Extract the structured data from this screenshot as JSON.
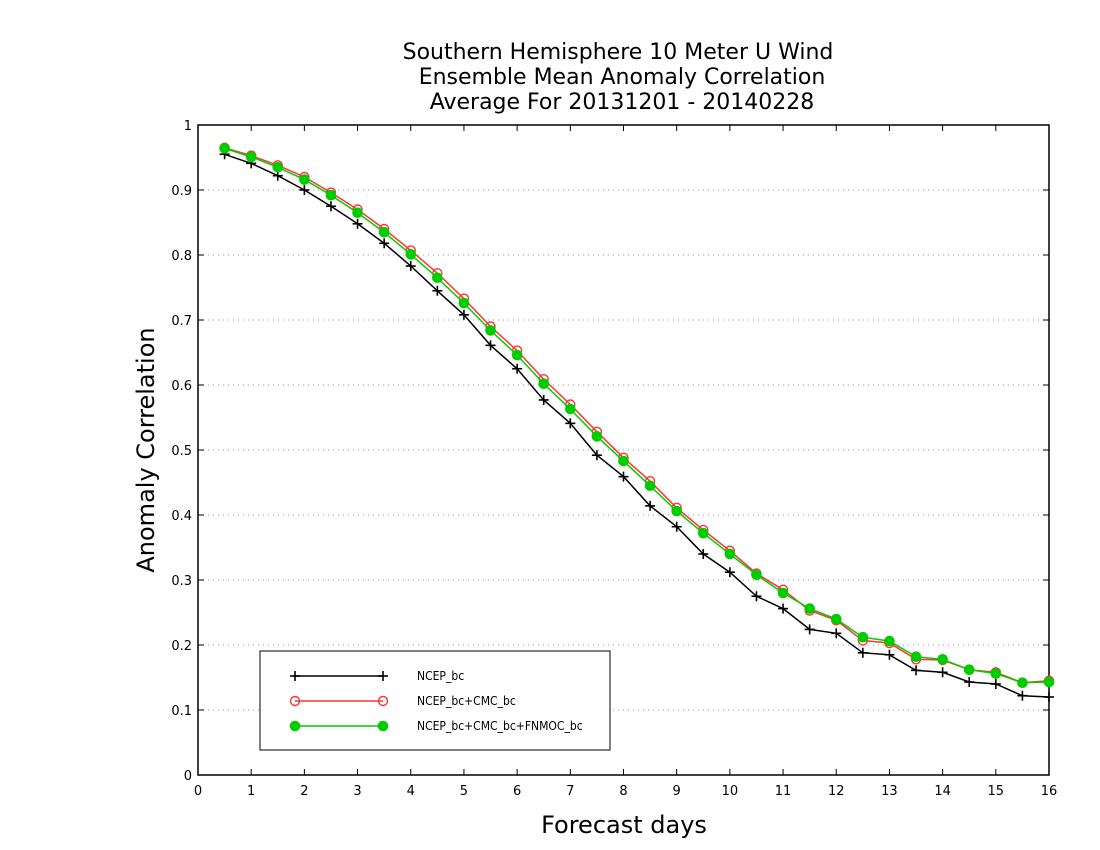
{
  "chart_data": {
    "type": "line",
    "title_lines": [
      "Southern Hemisphere 10 Meter U Wind",
      "Ensemble Mean Anomaly Correlation",
      "Average For 20131201 - 20140228"
    ],
    "xlabel": "Forecast days",
    "ylabel": "Anomaly Correlation",
    "xlim": [
      0,
      16
    ],
    "ylim": [
      0,
      1
    ],
    "xticks": [
      "0",
      "1",
      "2",
      "3",
      "4",
      "5",
      "6",
      "7",
      "8",
      "9",
      "10",
      "11",
      "12",
      "13",
      "14",
      "15",
      "16"
    ],
    "yticks": [
      "0",
      "0.1",
      "0.2",
      "0.3",
      "0.4",
      "0.5",
      "0.6",
      "0.7",
      "0.8",
      "0.9",
      "1"
    ],
    "grid": "horizontal-dotted",
    "legend_position": "bottom-left",
    "x": [
      0.5,
      1,
      1.5,
      2,
      2.5,
      3,
      3.5,
      4,
      4.5,
      5,
      5.5,
      6,
      6.5,
      7,
      7.5,
      8,
      8.5,
      9,
      9.5,
      10,
      10.5,
      11,
      11.5,
      12,
      12.5,
      13,
      13.5,
      14,
      14.5,
      15,
      15.5,
      16
    ],
    "series": [
      {
        "name": "NCEP_bc",
        "color": "#000000",
        "marker": "plus",
        "values": [
          0.955,
          0.941,
          0.922,
          0.9,
          0.875,
          0.848,
          0.818,
          0.783,
          0.745,
          0.708,
          0.661,
          0.625,
          0.577,
          0.541,
          0.492,
          0.459,
          0.414,
          0.382,
          0.34,
          0.312,
          0.275,
          0.256,
          0.224,
          0.218,
          0.188,
          0.185,
          0.161,
          0.158,
          0.143,
          0.14,
          0.122,
          0.12
        ]
      },
      {
        "name": "NCEP_bc+CMC_bc",
        "color": "#ff3333",
        "marker": "open-circle",
        "values": [
          0.965,
          0.953,
          0.938,
          0.92,
          0.896,
          0.87,
          0.84,
          0.807,
          0.772,
          0.733,
          0.69,
          0.653,
          0.609,
          0.57,
          0.528,
          0.488,
          0.452,
          0.411,
          0.377,
          0.345,
          0.31,
          0.285,
          0.253,
          0.238,
          0.207,
          0.203,
          0.178,
          0.177,
          0.162,
          0.158,
          0.142,
          0.145
        ]
      },
      {
        "name": "NCEP_bc+CMC_bc+FNMOC_bc",
        "color": "#00cc00",
        "marker": "filled-circle",
        "values": [
          0.964,
          0.951,
          0.935,
          0.916,
          0.892,
          0.865,
          0.835,
          0.801,
          0.765,
          0.726,
          0.684,
          0.646,
          0.602,
          0.563,
          0.521,
          0.483,
          0.445,
          0.406,
          0.372,
          0.34,
          0.308,
          0.28,
          0.256,
          0.24,
          0.212,
          0.206,
          0.182,
          0.178,
          0.162,
          0.156,
          0.142,
          0.143
        ]
      }
    ]
  }
}
